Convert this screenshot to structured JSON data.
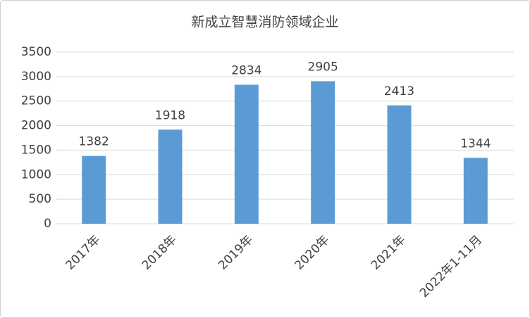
{
  "chart_data": {
    "type": "bar",
    "title": "新成立智慧消防领域企业",
    "categories": [
      "2017年",
      "2018年",
      "2019年",
      "2020年",
      "2021年",
      "2022年1-11月"
    ],
    "values": [
      1382,
      1918,
      2834,
      2905,
      2413,
      1344
    ],
    "color": "#5b9bd5",
    "ylim": [
      0,
      3500
    ],
    "yticks": [
      0,
      500,
      1000,
      1500,
      2000,
      2500,
      3000,
      3500
    ],
    "grid": true
  }
}
